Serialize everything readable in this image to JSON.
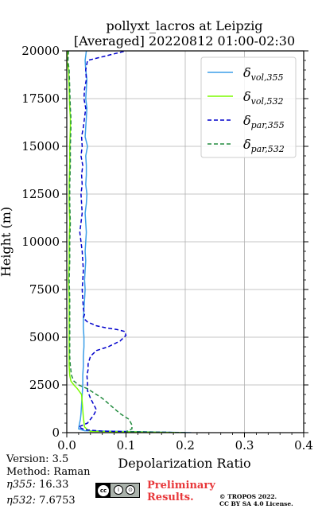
{
  "title_line1": "pollyxt_lacros at Leipzig",
  "title_line2": "[Averaged] 20220812 01:00-02:30",
  "info": {
    "version": "Version: 3.5",
    "method": "Method: Raman",
    "eta355_label": "η355:",
    "eta355_value": "16.33",
    "eta532_label": "η532:",
    "eta532_value": "7.6753"
  },
  "preliminary_line1": "Preliminary",
  "preliminary_line2": "Results.",
  "copyright_line1": "© TROPOS 2022.",
  "copyright_line2": "CC BY SA 4.0 License.",
  "cc_badge": [
    "cc",
    "i",
    "⊙"
  ],
  "chart_data": {
    "type": "line",
    "xlabel": "Depolarization Ratio",
    "ylabel": "Height (m)",
    "xlim": [
      0,
      0.4
    ],
    "ylim": [
      0,
      20000
    ],
    "xticks": [
      "0.0",
      "0.1",
      "0.2",
      "0.3",
      "0.4"
    ],
    "xtick_values": [
      0,
      0.1,
      0.2,
      0.3,
      0.4
    ],
    "yticks": [
      "0",
      "2500",
      "5000",
      "7500",
      "10000",
      "12500",
      "15000",
      "17500",
      "20000"
    ],
    "ytick_values": [
      0,
      2500,
      5000,
      7500,
      10000,
      12500,
      15000,
      17500,
      20000
    ],
    "grid": true,
    "legend_placement": "top-right",
    "series": [
      {
        "name_base": "δ",
        "name_sub": "vol,355",
        "color": "#3b9ee8",
        "dash": "solid",
        "points": [
          [
            0.21,
            0
          ],
          [
            0.03,
            100
          ],
          [
            0.02,
            200
          ],
          [
            0.021,
            400
          ],
          [
            0.023,
            700
          ],
          [
            0.024,
            1000
          ],
          [
            0.025,
            1500
          ],
          [
            0.026,
            2000
          ],
          [
            0.027,
            2500
          ],
          [
            0.027,
            3000
          ],
          [
            0.028,
            3500
          ],
          [
            0.028,
            4000
          ],
          [
            0.029,
            4500
          ],
          [
            0.029,
            5000
          ],
          [
            0.028,
            5500
          ],
          [
            0.028,
            6000
          ],
          [
            0.029,
            6500
          ],
          [
            0.03,
            7000
          ],
          [
            0.031,
            7500
          ],
          [
            0.03,
            8000
          ],
          [
            0.031,
            8500
          ],
          [
            0.032,
            9000
          ],
          [
            0.031,
            9500
          ],
          [
            0.032,
            10000
          ],
          [
            0.033,
            10500
          ],
          [
            0.032,
            11000
          ],
          [
            0.031,
            11500
          ],
          [
            0.033,
            12000
          ],
          [
            0.034,
            12500
          ],
          [
            0.032,
            13000
          ],
          [
            0.033,
            13500
          ],
          [
            0.033,
            14000
          ],
          [
            0.032,
            14500
          ],
          [
            0.035,
            15000
          ],
          [
            0.031,
            15500
          ],
          [
            0.032,
            16000
          ],
          [
            0.033,
            16500
          ],
          [
            0.034,
            17000
          ],
          [
            0.032,
            17500
          ],
          [
            0.033,
            18000
          ],
          [
            0.034,
            18500
          ],
          [
            0.032,
            19000
          ],
          [
            0.031,
            19500
          ],
          [
            0.033,
            20000
          ]
        ]
      },
      {
        "name_base": "δ",
        "name_sub": "vol,532",
        "color": "#7cfc00",
        "dash": "solid",
        "points": [
          [
            0.2,
            0
          ],
          [
            0.04,
            70
          ],
          [
            0.035,
            150
          ],
          [
            0.03,
            300
          ],
          [
            0.028,
            800
          ],
          [
            0.027,
            1200
          ],
          [
            0.026,
            1600
          ],
          [
            0.025,
            2000
          ],
          [
            0.018,
            2300
          ],
          [
            0.012,
            2500
          ],
          [
            0.007,
            2700
          ],
          [
            0.005,
            3000
          ],
          [
            0.004,
            3500
          ],
          [
            0.004,
            4000
          ],
          [
            0.004,
            5000
          ],
          [
            0.004,
            6000
          ],
          [
            0.004,
            7000
          ],
          [
            0.003,
            8000
          ],
          [
            0.004,
            9000
          ],
          [
            0.004,
            10000
          ],
          [
            0.005,
            11000
          ],
          [
            0.004,
            12000
          ],
          [
            0.004,
            13000
          ],
          [
            0.005,
            14000
          ],
          [
            0.005,
            15000
          ],
          [
            0.006,
            16000
          ],
          [
            0.006,
            16500
          ],
          [
            0.005,
            17000
          ],
          [
            0.004,
            18000
          ],
          [
            0.003,
            19000
          ],
          [
            0.0,
            19500
          ],
          [
            0.002,
            20000
          ]
        ]
      },
      {
        "name_base": "δ",
        "name_sub": "par,355",
        "color": "#0000cc",
        "dash": "dashed",
        "points": [
          [
            0.2,
            0
          ],
          [
            0.06,
            80
          ],
          [
            0.03,
            150
          ],
          [
            0.02,
            300
          ],
          [
            0.035,
            500
          ],
          [
            0.04,
            700
          ],
          [
            0.045,
            900
          ],
          [
            0.05,
            1200
          ],
          [
            0.045,
            1500
          ],
          [
            0.04,
            1800
          ],
          [
            0.035,
            2200
          ],
          [
            0.035,
            2600
          ],
          [
            0.034,
            3000
          ],
          [
            0.036,
            3300
          ],
          [
            0.036,
            3600
          ],
          [
            0.04,
            4000
          ],
          [
            0.05,
            4300
          ],
          [
            0.07,
            4500
          ],
          [
            0.09,
            4800
          ],
          [
            0.1,
            5100
          ],
          [
            0.098,
            5300
          ],
          [
            0.085,
            5400
          ],
          [
            0.065,
            5500
          ],
          [
            0.05,
            5600
          ],
          [
            0.035,
            5800
          ],
          [
            0.028,
            6000
          ],
          [
            0.03,
            6200
          ],
          [
            0.028,
            6500
          ],
          [
            0.027,
            7000
          ],
          [
            0.026,
            7500
          ],
          [
            0.027,
            8000
          ],
          [
            0.028,
            8500
          ],
          [
            0.027,
            9000
          ],
          [
            0.026,
            9500
          ],
          [
            0.024,
            10000
          ],
          [
            0.022,
            10500
          ],
          [
            0.024,
            11000
          ],
          [
            0.026,
            11500
          ],
          [
            0.025,
            12000
          ],
          [
            0.024,
            12500
          ],
          [
            0.026,
            13000
          ],
          [
            0.025,
            13500
          ],
          [
            0.027,
            14000
          ],
          [
            0.024,
            14500
          ],
          [
            0.026,
            15000
          ],
          [
            0.025,
            15500
          ],
          [
            0.028,
            16000
          ],
          [
            0.03,
            16500
          ],
          [
            0.032,
            17000
          ],
          [
            0.029,
            17500
          ],
          [
            0.03,
            18000
          ],
          [
            0.033,
            18500
          ],
          [
            0.032,
            19000
          ],
          [
            0.035,
            19500
          ],
          [
            0.1,
            20000
          ]
        ]
      },
      {
        "name_base": "δ",
        "name_sub": "par,532",
        "color": "#228b3e",
        "dash": "dashed",
        "points": [
          [
            0.2,
            0
          ],
          [
            0.1,
            50
          ],
          [
            0.11,
            200
          ],
          [
            0.11,
            400
          ],
          [
            0.105,
            700
          ],
          [
            0.09,
            1000
          ],
          [
            0.075,
            1400
          ],
          [
            0.06,
            1800
          ],
          [
            0.045,
            2100
          ],
          [
            0.035,
            2300
          ],
          [
            0.02,
            2500
          ],
          [
            0.012,
            2700
          ],
          [
            0.008,
            3000
          ],
          [
            0.006,
            3500
          ],
          [
            0.005,
            4000
          ],
          [
            0.005,
            5000
          ],
          [
            0.005,
            6000
          ],
          [
            0.005,
            7000
          ],
          [
            0.004,
            8000
          ],
          [
            0.005,
            9000
          ],
          [
            0.005,
            10000
          ],
          [
            0.006,
            11000
          ],
          [
            0.005,
            12000
          ],
          [
            0.005,
            13000
          ],
          [
            0.006,
            14000
          ],
          [
            0.006,
            15000
          ],
          [
            0.007,
            16000
          ],
          [
            0.007,
            16500
          ],
          [
            0.006,
            17000
          ],
          [
            0.005,
            18000
          ],
          [
            0.004,
            19000
          ],
          [
            0.002,
            19500
          ],
          [
            0.003,
            20000
          ]
        ]
      }
    ]
  }
}
